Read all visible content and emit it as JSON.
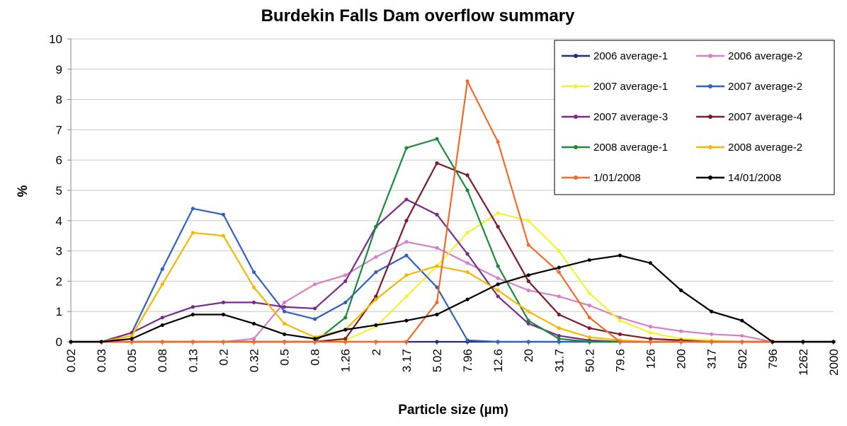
{
  "chart_data": {
    "type": "line",
    "title": "Burdekin Falls Dam overflow summary",
    "x_label": "Particle size (µm)",
    "y_label": "%",
    "categories": [
      "0.02",
      "0.03",
      "0.05",
      "0.08",
      "0.13",
      "0.2",
      "0.32",
      "0.5",
      "0.8",
      "1.26",
      "2",
      "3.17",
      "5.02",
      "7.96",
      "12.6",
      "20",
      "31.7",
      "50.2",
      "79.6",
      "126",
      "200",
      "317",
      "502",
      "796",
      "1262",
      "2000"
    ],
    "ylim": [
      0,
      10
    ],
    "yticks": [
      0,
      1,
      2,
      3,
      4,
      5,
      6,
      7,
      8,
      9,
      10
    ],
    "grid": true,
    "legend": "upper right",
    "series": [
      {
        "name": "2006 average-1",
        "color": "#1f2f7a",
        "values": [
          0,
          0,
          0,
          0,
          0,
          0,
          0,
          0,
          0,
          0,
          0,
          0,
          0,
          0,
          0,
          0,
          0,
          0,
          0,
          0,
          0,
          0,
          0,
          0,
          0,
          0
        ]
      },
      {
        "name": "2006 average-2",
        "color": "#d67fc8",
        "values": [
          0,
          0,
          0,
          0,
          0,
          0,
          0.1,
          1.3,
          1.9,
          2.2,
          2.8,
          3.3,
          3.1,
          2.6,
          2.1,
          1.7,
          1.5,
          1.2,
          0.8,
          0.5,
          0.35,
          0.25,
          0.2,
          0,
          0,
          0
        ]
      },
      {
        "name": "2007 average-1",
        "color": "#f2f230",
        "values": [
          0,
          0,
          0,
          0,
          0,
          0,
          0,
          0,
          0,
          0.05,
          0.5,
          1.5,
          2.5,
          3.6,
          4.25,
          4.0,
          3.0,
          1.6,
          0.7,
          0.3,
          0.1,
          0.05,
          0,
          0,
          0,
          0
        ]
      },
      {
        "name": "2007 average-2",
        "color": "#3060c0",
        "values": [
          0,
          0,
          0.3,
          2.4,
          4.4,
          4.2,
          2.3,
          1.0,
          0.75,
          1.3,
          2.3,
          2.85,
          1.8,
          0.05,
          0,
          0,
          0,
          0,
          0,
          0,
          0,
          0,
          0,
          0,
          0,
          0
        ]
      },
      {
        "name": "2007 average-3",
        "color": "#7a2a8a",
        "values": [
          0,
          0,
          0.3,
          0.8,
          1.15,
          1.3,
          1.3,
          1.15,
          1.1,
          2.0,
          3.8,
          4.7,
          4.2,
          2.9,
          1.5,
          0.6,
          0.2,
          0.05,
          0,
          0,
          0,
          0,
          0,
          0,
          0,
          0
        ]
      },
      {
        "name": "2007 average-4",
        "color": "#7a1a2a",
        "values": [
          0,
          0,
          0,
          0,
          0,
          0,
          0,
          0,
          0,
          0.1,
          1.5,
          4.0,
          5.9,
          5.5,
          3.8,
          2.0,
          0.9,
          0.45,
          0.25,
          0.1,
          0.05,
          0,
          0,
          0,
          0,
          0
        ]
      },
      {
        "name": "2008 average-1",
        "color": "#1a8a3a",
        "values": [
          0,
          0,
          0,
          0,
          0,
          0,
          0,
          0,
          0,
          0.8,
          3.8,
          6.4,
          6.7,
          5.0,
          2.5,
          0.7,
          0.1,
          0,
          0,
          0,
          0,
          0,
          0,
          0,
          0,
          0
        ]
      },
      {
        "name": "2008 average-2",
        "color": "#f5b800",
        "values": [
          0,
          0,
          0.2,
          1.9,
          3.6,
          3.5,
          1.8,
          0.6,
          0.15,
          0.4,
          1.4,
          2.2,
          2.5,
          2.3,
          1.7,
          1.0,
          0.45,
          0.15,
          0.05,
          0,
          0,
          0,
          0,
          0,
          0,
          0
        ]
      },
      {
        "name": "1/01/2008",
        "color": "#f26a2a",
        "values": [
          0,
          0,
          0,
          0,
          0,
          0,
          0,
          0,
          0,
          0,
          0,
          0,
          1.3,
          8.6,
          6.6,
          3.2,
          2.3,
          0.8,
          0,
          0,
          0,
          0,
          0,
          0,
          0,
          0
        ]
      },
      {
        "name": "14/01/2008",
        "color": "#000000",
        "values": [
          0,
          0,
          0.1,
          0.55,
          0.9,
          0.9,
          0.6,
          0.25,
          0.1,
          0.4,
          0.55,
          0.7,
          0.9,
          1.4,
          1.9,
          2.2,
          2.45,
          2.7,
          2.85,
          2.6,
          1.7,
          1.0,
          0.7,
          0,
          0,
          0
        ]
      }
    ]
  }
}
